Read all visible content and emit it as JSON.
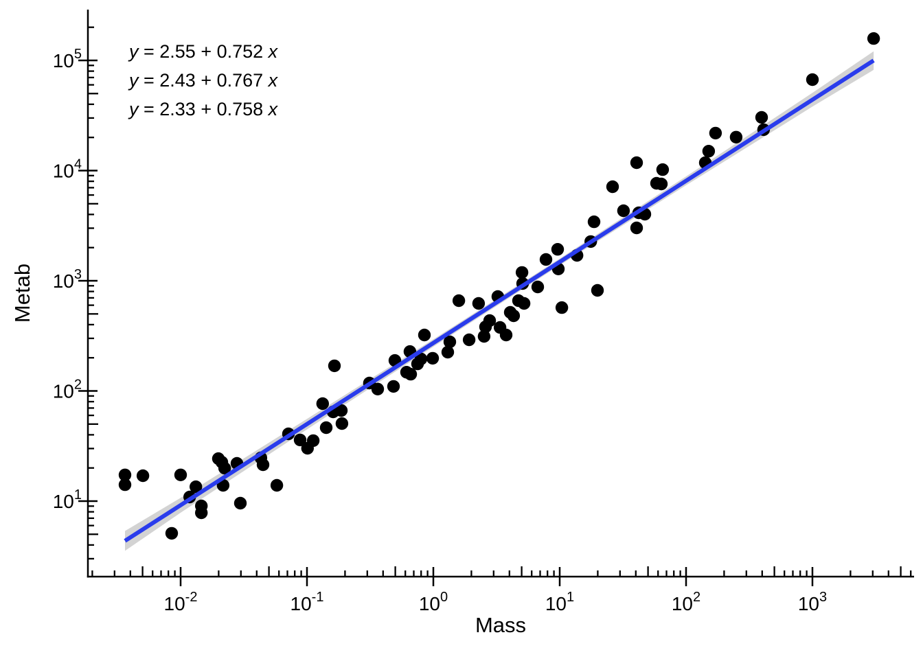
{
  "figure": {
    "background": "#ffffff",
    "colors": {
      "point": "#000000",
      "regression_line": "#2a3cec",
      "confidence_band": "#d3d3d3",
      "axis": "#000000",
      "text": "#000000"
    }
  },
  "chart_data": {
    "type": "scatter",
    "xlabel": "Mass",
    "ylabel": "Metab",
    "x_scale": "log10",
    "y_scale": "log10",
    "xlim_log10": [
      -2.73,
      3.81
    ],
    "ylim_log10": [
      0.31,
      5.46
    ],
    "grid": "off",
    "legend": "none",
    "equations": [
      {
        "lhs": "y",
        "body": " = 2.55 + 0.752 ",
        "var": "x"
      },
      {
        "lhs": "y",
        "body": " = 2.43 + 0.767 ",
        "var": "x"
      },
      {
        "lhs": "y",
        "body": " = 2.33 + 0.758 ",
        "var": "x"
      }
    ],
    "x_ticks": [
      {
        "base": "10",
        "exp": "-2"
      },
      {
        "base": "10",
        "exp": "-1"
      },
      {
        "base": "10",
        "exp": "0"
      },
      {
        "base": "10",
        "exp": "1"
      },
      {
        "base": "10",
        "exp": "2"
      },
      {
        "base": "10",
        "exp": "3"
      }
    ],
    "y_ticks": [
      {
        "base": "10",
        "exp": "1"
      },
      {
        "base": "10",
        "exp": "2"
      },
      {
        "base": "10",
        "exp": "3"
      },
      {
        "base": "10",
        "exp": "4"
      },
      {
        "base": "10",
        "exp": "5"
      }
    ],
    "x_minor_decades": {
      "from": -3,
      "to": 3
    },
    "y_minor_decades": {
      "from": 0,
      "to": 5
    },
    "fit_line": {
      "mass_start": 0.00363,
      "metab_start": 4.36,
      "mass_end": 3050,
      "metab_end": 99800,
      "log_intercept": 2.44,
      "log_slope": 0.736
    },
    "confidence_band": [
      [
        0.00363,
        3.54,
        5.36
      ],
      [
        0.01,
        7.85,
        10.7
      ],
      [
        0.1,
        44.8,
        55.8
      ],
      [
        1,
        252,
        294
      ],
      [
        10,
        1380,
        1590
      ],
      [
        100,
        7360,
        8850
      ],
      [
        1000,
        38100,
        50700
      ],
      [
        3050,
        82000,
        121000
      ]
    ],
    "points": [
      [
        0.00363,
        17.3
      ],
      [
        0.00363,
        14.1
      ],
      [
        0.00503,
        17.0
      ],
      [
        0.01,
        17.3
      ],
      [
        0.0085,
        5.1
      ],
      [
        0.0118,
        10.9
      ],
      [
        0.0132,
        13.5
      ],
      [
        0.0146,
        9.05
      ],
      [
        0.0146,
        7.84
      ],
      [
        0.0199,
        24.3
      ],
      [
        0.0212,
        22.6
      ],
      [
        0.0223,
        19.9
      ],
      [
        0.0279,
        22.0
      ],
      [
        0.0217,
        13.9
      ],
      [
        0.0297,
        9.58
      ],
      [
        0.0432,
        24.7
      ],
      [
        0.0449,
        21.4
      ],
      [
        0.0577,
        13.9
      ],
      [
        0.0713,
        40.8
      ],
      [
        0.0882,
        35.9
      ],
      [
        0.101,
        30.2
      ],
      [
        0.112,
        35.4
      ],
      [
        0.133,
        76.7
      ],
      [
        0.142,
        46.4
      ],
      [
        0.165,
        169
      ],
      [
        0.161,
        64.6
      ],
      [
        0.187,
        66.4
      ],
      [
        0.189,
        50.6
      ],
      [
        0.312,
        118
      ],
      [
        0.363,
        104
      ],
      [
        0.484,
        110
      ],
      [
        0.496,
        189
      ],
      [
        0.614,
        148
      ],
      [
        0.662,
        142
      ],
      [
        0.653,
        228
      ],
      [
        0.75,
        176
      ],
      [
        0.798,
        195
      ],
      [
        0.85,
        322
      ],
      [
        0.988,
        198
      ],
      [
        1.3,
        225
      ],
      [
        1.35,
        279
      ],
      [
        1.59,
        660
      ],
      [
        1.92,
        291
      ],
      [
        2.28,
        623
      ],
      [
        2.52,
        313
      ],
      [
        2.59,
        382
      ],
      [
        2.79,
        435
      ],
      [
        3.24,
        719
      ],
      [
        3.37,
        377
      ],
      [
        3.77,
        322
      ],
      [
        4.06,
        517
      ],
      [
        4.32,
        481
      ],
      [
        4.72,
        660
      ],
      [
        5.22,
        623
      ],
      [
        5.03,
        1190
      ],
      [
        5.09,
        944
      ],
      [
        6.7,
        879
      ],
      [
        7.79,
        1560
      ],
      [
        9.63,
        1930
      ],
      [
        9.75,
        1280
      ],
      [
        10.4,
        571
      ],
      [
        13.7,
        1700
      ],
      [
        19.9,
        818
      ],
      [
        17.6,
        2270
      ],
      [
        18.7,
        3430
      ],
      [
        26.2,
        7140
      ],
      [
        32.0,
        4320
      ],
      [
        40.6,
        11800
      ],
      [
        42.2,
        4140
      ],
      [
        47.2,
        4020
      ],
      [
        40.6,
        3020
      ],
      [
        58.4,
        7670
      ],
      [
        63.7,
        7560
      ],
      [
        65.3,
        10200
      ],
      [
        142,
        11800
      ],
      [
        151,
        15000
      ],
      [
        171,
        21900
      ],
      [
        249,
        20100
      ],
      [
        396,
        30400
      ],
      [
        411,
        23500
      ],
      [
        1000,
        66900
      ],
      [
        3050,
        158000
      ]
    ]
  }
}
